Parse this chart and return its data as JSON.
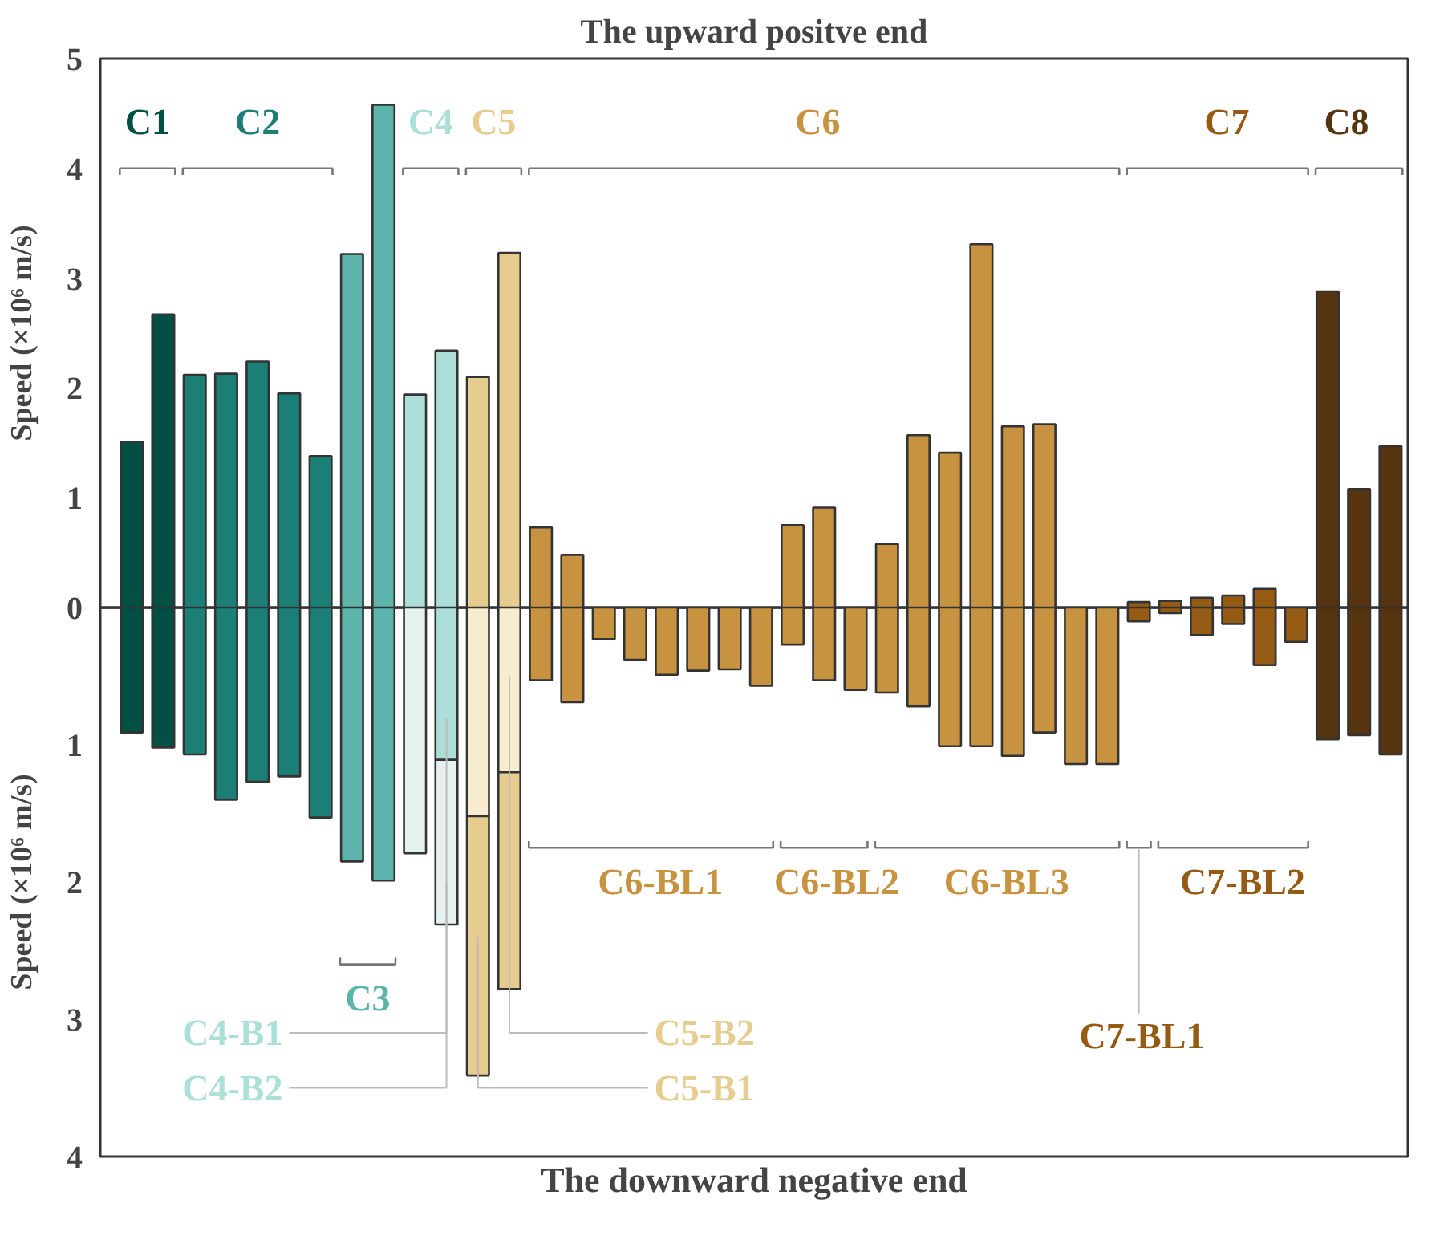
{
  "chart_data": [
    {
      "type": "bar",
      "title": "The upward positve end",
      "ylabel": "Speed (×10⁶ m/s)",
      "categories": [
        null,
        null,
        null,
        null,
        null,
        null,
        null,
        null,
        null,
        null,
        null,
        null,
        null,
        null,
        null,
        null,
        null,
        null,
        null,
        null,
        null,
        null,
        null,
        null,
        null,
        null,
        null,
        null,
        null,
        null,
        null,
        null,
        null,
        null,
        null,
        null,
        null,
        null,
        null,
        null,
        null
      ],
      "ylim": [
        0,
        5
      ],
      "yticks": [
        0,
        1,
        2,
        3,
        4,
        5
      ],
      "tick_labels": "y",
      "grid": false,
      "series": [
        {
          "values": [
            1.51,
            2.67,
            2.12,
            2.13,
            2.24,
            1.95,
            1.38,
            3.22,
            4.58,
            1.94,
            2.34,
            2.1,
            3.23,
            0.73,
            0.48,
            null,
            null,
            null,
            null,
            null,
            null,
            0.75,
            0.91,
            null,
            0.58,
            1.57,
            1.41,
            3.31,
            1.65,
            1.67,
            null,
            null,
            0.05,
            0.06,
            0.09,
            0.11,
            0.17,
            null,
            2.88,
            1.08,
            1.47
          ],
          "colors": [
            "#024f44",
            "#024f44",
            "#1b7f76",
            "#1b7f76",
            "#1b7f76",
            "#1b7f76",
            "#1b7f76",
            "#5db4aa",
            "#5db4aa",
            "#acdfd7",
            "#acdfd7",
            "#e6cc8e",
            "#e6cc8e",
            "#c89340",
            "#c89340",
            "#c89340",
            "#c89340",
            "#c89340",
            "#c89340",
            "#c89340",
            "#c89340",
            "#c89340",
            "#c89340",
            "#c89340",
            "#c89340",
            "#c89340",
            "#c89340",
            "#c89340",
            "#c89340",
            "#c89340",
            "#c89340",
            "#c89340",
            "#955b15",
            "#955b15",
            "#955b15",
            "#955b15",
            "#955b15",
            "#955b15",
            "#573410",
            "#573410",
            "#573410"
          ]
        }
      ],
      "annotations": [
        "C1",
        "C2",
        "C4",
        "C5",
        "C6",
        "C7",
        "C8"
      ]
    },
    {
      "type": "bar",
      "xlabel": "The downward negative end",
      "ylabel": "Speed (×10⁶ m/s)",
      "stacked": true,
      "categories": [
        null,
        null,
        null,
        null,
        null,
        null,
        null,
        null,
        null,
        null,
        null,
        null,
        null,
        null,
        null,
        null,
        null,
        null,
        null,
        null,
        null,
        null,
        null,
        null,
        null,
        null,
        null,
        null,
        null,
        null,
        null,
        null,
        null,
        null,
        null,
        null,
        null,
        null,
        null,
        null,
        null
      ],
      "ylim": [
        4,
        0
      ],
      "yticks": [
        1,
        2,
        3,
        4
      ],
      "tick_labels": "y",
      "grid": false,
      "series": [
        {
          "values": [
            0.91,
            1.02,
            1.07,
            1.4,
            1.27,
            1.23,
            1.53,
            1.85,
            1.99,
            1.79,
            1.11,
            1.52,
            1.2,
            0.53,
            0.69,
            0.23,
            0.38,
            0.49,
            0.46,
            0.45,
            0.57,
            0.27,
            0.53,
            0.6,
            0.62,
            0.72,
            1.01,
            1.01,
            1.08,
            0.91,
            1.14,
            1.14,
            0.1,
            0.04,
            0.2,
            0.12,
            0.42,
            0.25,
            0.96,
            0.93,
            1.07
          ],
          "colors": [
            "#024f44",
            "#024f44",
            "#1b7f76",
            "#1b7f76",
            "#1b7f76",
            "#1b7f76",
            "#1b7f76",
            "#5db4aa",
            "#5db4aa",
            "#e5f2ef",
            "#acdfd7",
            "#f7ecd0",
            "#f7ecd0",
            "#c89340",
            "#c89340",
            "#c89340",
            "#c89340",
            "#c89340",
            "#c89340",
            "#c89340",
            "#c89340",
            "#c89340",
            "#c89340",
            "#c89340",
            "#c89340",
            "#c89340",
            "#c89340",
            "#c89340",
            "#c89340",
            "#c89340",
            "#c89340",
            "#c89340",
            "#955b15",
            "#955b15",
            "#955b15",
            "#955b15",
            "#955b15",
            "#955b15",
            "#573410",
            "#573410",
            "#573410"
          ]
        },
        {
          "values": [
            null,
            null,
            null,
            null,
            null,
            null,
            null,
            null,
            null,
            null,
            1.2,
            1.89,
            1.58,
            null,
            null,
            null,
            null,
            null,
            null,
            null,
            null,
            null,
            null,
            null,
            null,
            null,
            null,
            null,
            null,
            null,
            null,
            null,
            null,
            null,
            null,
            null,
            null,
            null,
            null,
            null,
            null
          ],
          "colors": [
            null,
            null,
            null,
            null,
            null,
            null,
            null,
            null,
            null,
            null,
            "#e5f2ef",
            "#e6cc8e",
            "#e6cc8e",
            null,
            null,
            null,
            null,
            null,
            null,
            null,
            null,
            null,
            null,
            null,
            null,
            null,
            null,
            null,
            null,
            null,
            null,
            null,
            null,
            null,
            null,
            null,
            null,
            null,
            null,
            null,
            null
          ]
        }
      ],
      "annotations": [
        "C3",
        "C6-BL1",
        "C6-BL2",
        "C6-BL3",
        "C7-BL2",
        "C7-BL1",
        "C4-B1",
        "C4-B2",
        "C5-B2",
        "C5-B1"
      ]
    }
  ]
}
